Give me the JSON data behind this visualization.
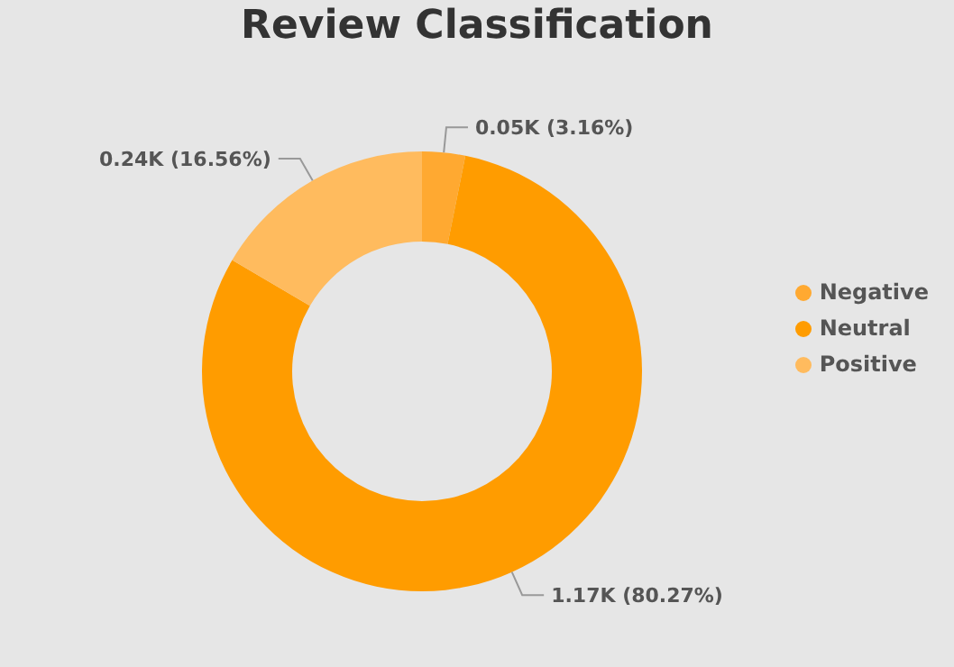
{
  "chart_data": {
    "type": "donut",
    "title": "Review Classification",
    "categories": [
      "Negative",
      "Neutral",
      "Positive"
    ],
    "values": [
      3.16,
      80.27,
      16.56
    ],
    "value_labels": [
      "0.05K (3.16%)",
      "1.17K (80.27%)",
      "0.24K (16.56%)"
    ],
    "colors": [
      "#ffa931",
      "#ff9c00",
      "#ffbb5e"
    ],
    "legend": "right"
  }
}
